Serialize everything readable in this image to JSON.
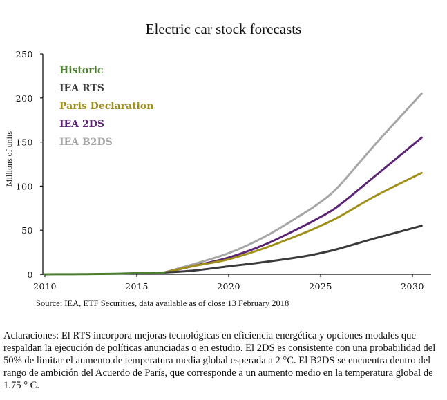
{
  "chart_data": {
    "type": "line",
    "title": "Electric car stock forecasts",
    "xlabel": "",
    "ylabel": "Millions of units",
    "xlim": [
      2010,
      2030
    ],
    "ylim": [
      0,
      250
    ],
    "x_ticks": [
      "2010",
      "2015",
      "2020",
      "2025",
      "2030"
    ],
    "y_ticks": [
      "0",
      "50",
      "100",
      "150",
      "200",
      "250"
    ],
    "grid": false,
    "legend_position": "top-left",
    "series": [
      {
        "name": "Historic",
        "color": "#4e7e32",
        "x": [
          2010,
          2011,
          2012,
          2013,
          2014,
          2015,
          2016.5
        ],
        "values": [
          0.02,
          0.07,
          0.18,
          0.38,
          0.7,
          1.26,
          2.0
        ]
      },
      {
        "name": "IEA RTS",
        "color": "#3a3a3a",
        "x": [
          2016.5,
          2018,
          2020,
          2022,
          2024,
          2025,
          2026,
          2028,
          2030.5
        ],
        "values": [
          2,
          4,
          9,
          14,
          20,
          24,
          29,
          41,
          55
        ]
      },
      {
        "name": "Paris Declaration",
        "color": "#a0901a",
        "x": [
          2016.5,
          2018,
          2020,
          2022,
          2024,
          2025,
          2026,
          2028,
          2030.5
        ],
        "values": [
          2,
          9,
          17,
          30,
          46,
          55,
          65,
          89,
          115
        ]
      },
      {
        "name": "IEA 2DS",
        "color": "#5b2474",
        "x": [
          2016.5,
          2018,
          2020,
          2022,
          2024,
          2025,
          2026,
          2028,
          2030.5
        ],
        "values": [
          2,
          9,
          19,
          34,
          54,
          65,
          78,
          112,
          155
        ]
      },
      {
        "name": "IEA B2DS",
        "color": "#a6a6a6",
        "x": [
          2016.5,
          2018,
          2020,
          2022,
          2024,
          2025,
          2026,
          2028,
          2030.5
        ],
        "values": [
          2,
          11,
          24,
          43,
          68,
          82,
          100,
          148,
          205
        ]
      }
    ]
  },
  "source": "Source: IEA, ETF Securities, data available as of close 13 February 2018",
  "clarification": "Aclaraciones: El RTS incorpora mejoras tecnológicas en eficiencia energética y opciones modales que respaldan la ejecución de políticas anunciadas o en estudio. El 2DS es consistente con una probabilidad del 50% de limitar el aumento de temperatura media global esperada a 2 °C. El B2DS se encuentra dentro del rango de ambición del Acuerdo de París, que corresponde a un aumento medio en la temperatura global de 1.75 ° C."
}
